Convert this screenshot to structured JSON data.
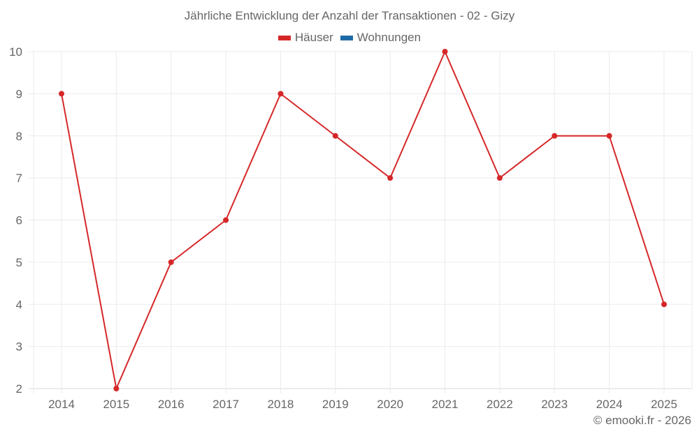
{
  "chart_data": {
    "type": "line",
    "title": "Jährliche Entwicklung der Anzahl der Transaktionen - 02 - Gizy",
    "xlabel": "",
    "ylabel": "",
    "categories": [
      "2014",
      "2015",
      "2016",
      "2017",
      "2018",
      "2019",
      "2020",
      "2021",
      "2022",
      "2023",
      "2024",
      "2025"
    ],
    "series": [
      {
        "name": "Häuser",
        "color": "#d62728",
        "values": [
          9,
          2,
          5,
          6,
          9,
          8,
          7,
          10,
          7,
          8,
          8,
          4
        ]
      },
      {
        "name": "Wohnungen",
        "color": "#1f6aa5",
        "values": []
      }
    ],
    "ylim": [
      2,
      10
    ],
    "yticks": [
      2,
      3,
      4,
      5,
      6,
      7,
      8,
      9,
      10
    ],
    "grid": true,
    "legend_position": "top-center"
  },
  "legend": [
    {
      "label": "Häuser",
      "color": "#d62728"
    },
    {
      "label": "Wohnungen",
      "color": "#1f6aa5"
    }
  ],
  "footer": "© emooki.fr - 2026"
}
